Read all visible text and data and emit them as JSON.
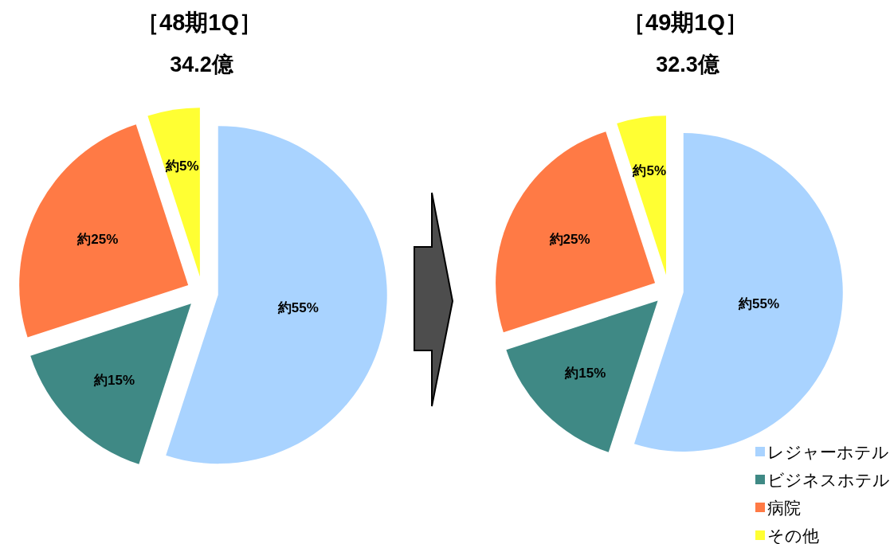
{
  "chart_data": [
    {
      "type": "pie",
      "title": "［48期1Q］",
      "subtitle": "34.2億",
      "categories": [
        null,
        null,
        null,
        null
      ],
      "values": [
        55,
        15,
        25,
        5
      ],
      "colors": [
        "#a9d3ff",
        "#3f8985",
        "#ff7a45",
        "#ffff33"
      ],
      "value_labels": [
        "約55%",
        "約15%",
        "約25%",
        "約5%"
      ]
    },
    {
      "type": "pie",
      "title": "［49期1Q］",
      "subtitle": "32.3億",
      "categories": [
        "レジャーホテル",
        "ビジネスホテル",
        "病院",
        "その他"
      ],
      "values": [
        55,
        15,
        25,
        5
      ],
      "colors": [
        "#a9d3ff",
        "#3f8985",
        "#ff7a45",
        "#ffff33"
      ],
      "value_labels": [
        "約55%",
        "約15%",
        "約25%",
        "約5%"
      ],
      "legend": "bottom right"
    }
  ]
}
